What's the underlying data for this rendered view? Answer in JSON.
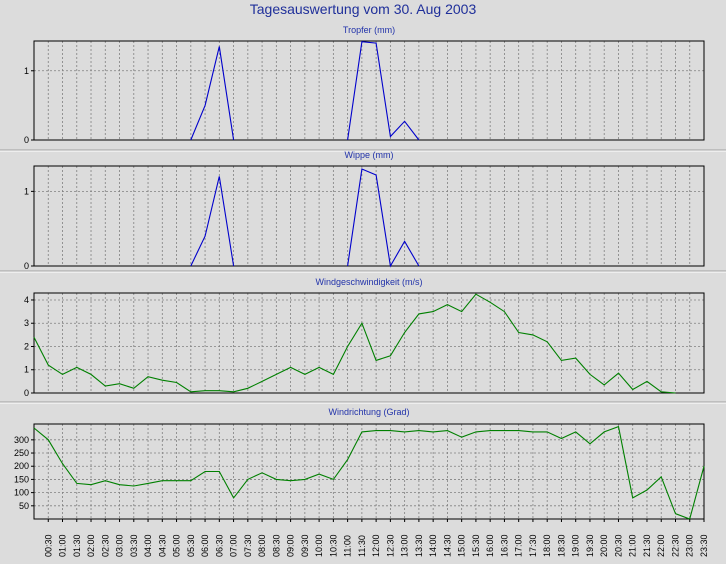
{
  "page_title": "Tagesauswertung vom 30. Aug 2003",
  "colors": {
    "background": "#dcdcdc",
    "plot_bg": "#dcdcdc",
    "title": "#1f2f9a",
    "grid": "#808080"
  },
  "x_labels": [
    "00:30",
    "01:00",
    "01:30",
    "02:00",
    "02:30",
    "03:00",
    "03:30",
    "04:00",
    "04:30",
    "05:00",
    "05:30",
    "06:00",
    "06:30",
    "07:00",
    "07:30",
    "08:00",
    "08:30",
    "09:00",
    "09:30",
    "10:00",
    "10:30",
    "11:00",
    "11:30",
    "12:00",
    "12:30",
    "13:00",
    "13:30",
    "14:00",
    "14:30",
    "15:00",
    "15:30",
    "16:00",
    "16:30",
    "17:00",
    "17:30",
    "18:00",
    "18:30",
    "19:00",
    "19:30",
    "20:00",
    "20:30",
    "21:00",
    "21:30",
    "22:00",
    "22:30",
    "23:00",
    "23:30"
  ],
  "chart_data": [
    {
      "type": "line",
      "title": "Tropfer (mm)",
      "color": "#0000cc",
      "yticks": [
        0,
        1
      ],
      "ylim": [
        0,
        1.43
      ],
      "grid": true,
      "x_start": "00:00",
      "x_end": "23:30",
      "x_step": "00:30",
      "values": [
        null,
        null,
        null,
        null,
        null,
        null,
        null,
        null,
        null,
        null,
        null,
        0,
        0.5,
        1.35,
        0,
        null,
        null,
        null,
        null,
        null,
        null,
        null,
        0,
        1.42,
        1.4,
        0.05,
        0.27,
        0,
        null,
        null,
        null,
        null,
        null,
        null,
        null,
        null,
        null,
        null,
        null,
        null,
        null,
        null,
        null,
        null,
        null,
        null,
        null,
        null
      ]
    },
    {
      "type": "line",
      "title": "Wippe (mm)",
      "color": "#0000cc",
      "yticks": [
        0,
        1
      ],
      "ylim": [
        0,
        1.34
      ],
      "grid": true,
      "x_start": "00:00",
      "x_end": "23:30",
      "x_step": "00:30",
      "values": [
        null,
        null,
        null,
        null,
        null,
        null,
        null,
        null,
        null,
        null,
        null,
        0,
        0.4,
        1.2,
        0,
        null,
        null,
        null,
        null,
        null,
        null,
        null,
        0,
        1.3,
        1.22,
        0,
        0.33,
        0,
        null,
        null,
        null,
        null,
        null,
        null,
        null,
        null,
        null,
        null,
        null,
        null,
        null,
        null,
        null,
        null,
        null,
        null,
        null,
        null
      ]
    },
    {
      "type": "line",
      "title": "Windgeschwindigkeit (m/s)",
      "color": "#008000",
      "yticks": [
        0,
        1,
        2,
        3,
        4
      ],
      "ylim": [
        0,
        4.3
      ],
      "grid": true,
      "x_start": "00:00",
      "x_end": "23:30",
      "x_step": "00:30",
      "values": [
        2.4,
        1.2,
        0.8,
        1.1,
        0.8,
        0.3,
        0.4,
        0.2,
        0.7,
        0.55,
        0.45,
        0.05,
        0.1,
        0.1,
        0.05,
        0.2,
        0.5,
        0.8,
        1.1,
        0.8,
        1.1,
        0.8,
        2.0,
        3.0,
        1.4,
        1.6,
        2.6,
        3.4,
        3.5,
        3.8,
        3.5,
        4.25,
        3.9,
        3.5,
        2.6,
        2.5,
        2.2,
        1.4,
        1.5,
        0.8,
        0.35,
        0.85,
        0.15,
        0.5,
        0.05,
        0.0,
        null,
        null
      ]
    },
    {
      "type": "line",
      "title": "Windrichtung (Grad)",
      "color": "#008000",
      "yticks": [
        50,
        100,
        150,
        200,
        250,
        300
      ],
      "ylim": [
        0,
        360
      ],
      "grid": true,
      "x_start": "00:00",
      "x_end": "23:30",
      "x_step": "00:30",
      "values": [
        345,
        300,
        210,
        135,
        130,
        145,
        130,
        125,
        135,
        145,
        145,
        145,
        180,
        180,
        80,
        150,
        175,
        150,
        145,
        150,
        170,
        150,
        225,
        330,
        335,
        335,
        330,
        335,
        330,
        335,
        310,
        330,
        335,
        335,
        335,
        330,
        330,
        305,
        330,
        285,
        330,
        350,
        80,
        110,
        160,
        20,
        0,
        200
      ]
    }
  ]
}
